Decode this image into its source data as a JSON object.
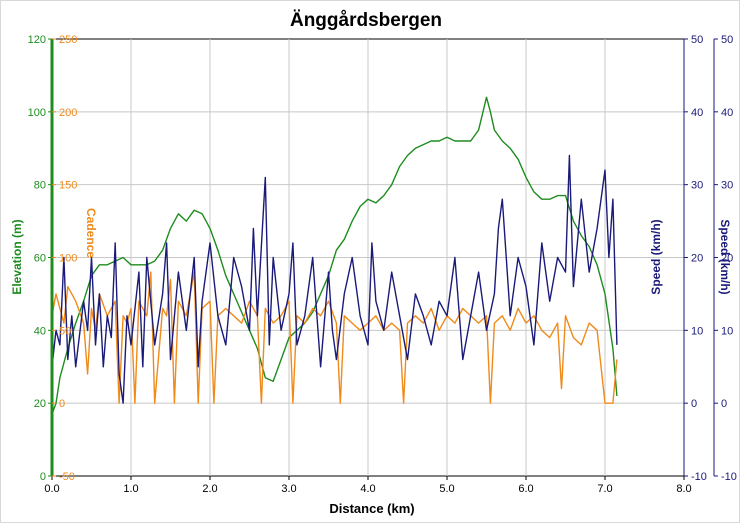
{
  "chart_data": {
    "type": "line",
    "title": "Änggårdsbergen",
    "xlabel": "Distance (km)",
    "xlim": [
      0,
      8
    ],
    "x_ticks": [
      "0.0",
      "1.0",
      "2.0",
      "3.0",
      "4.0",
      "5.0",
      "6.0",
      "7.0",
      "8.0"
    ],
    "axes": [
      {
        "name": "Elevation (m)",
        "side": "left",
        "color": "#1e8c1e",
        "ylim": [
          0,
          120
        ],
        "ticks": [
          "0",
          "20",
          "40",
          "60",
          "80",
          "100",
          "120"
        ]
      },
      {
        "name": "Cadence",
        "side": "left",
        "color": "#f08a1a",
        "ylim": [
          -50,
          250
        ],
        "ticks": [
          "-50",
          "0",
          "50",
          "100",
          "150",
          "200",
          "250"
        ]
      },
      {
        "name": "Speed (km/h)",
        "side": "right",
        "color": "#1a1a7a",
        "ylim": [
          -10,
          50
        ],
        "ticks": [
          "-10",
          "0",
          "10",
          "20",
          "30",
          "40",
          "50"
        ]
      },
      {
        "name": "Speed (km/h)",
        "side": "right",
        "color": "#1a1a7a",
        "ylim": [
          -10,
          50
        ],
        "ticks": [
          "-10",
          "0",
          "10",
          "20",
          "30",
          "40",
          "50"
        ]
      }
    ],
    "series": [
      {
        "name": "Elevation",
        "axis": 0,
        "color": "#1e8c1e",
        "x": [
          0.0,
          0.05,
          0.1,
          0.2,
          0.3,
          0.4,
          0.5,
          0.6,
          0.7,
          0.8,
          0.9,
          1.0,
          1.1,
          1.2,
          1.3,
          1.4,
          1.5,
          1.6,
          1.7,
          1.8,
          1.9,
          2.0,
          2.1,
          2.2,
          2.3,
          2.4,
          2.5,
          2.6,
          2.7,
          2.8,
          2.9,
          3.0,
          3.1,
          3.2,
          3.3,
          3.4,
          3.5,
          3.6,
          3.7,
          3.8,
          3.9,
          4.0,
          4.1,
          4.2,
          4.3,
          4.4,
          4.5,
          4.6,
          4.7,
          4.8,
          4.9,
          5.0,
          5.1,
          5.2,
          5.3,
          5.4,
          5.5,
          5.55,
          5.6,
          5.7,
          5.8,
          5.9,
          6.0,
          6.1,
          6.2,
          6.3,
          6.4,
          6.5,
          6.6,
          6.7,
          6.8,
          6.9,
          7.0,
          7.1,
          7.15
        ],
        "y": [
          17,
          20,
          27,
          35,
          42,
          48,
          55,
          58,
          58,
          59,
          60,
          58,
          58,
          58,
          59,
          62,
          68,
          72,
          70,
          73,
          72,
          68,
          62,
          55,
          50,
          45,
          40,
          35,
          27,
          26,
          32,
          38,
          40,
          42,
          45,
          50,
          55,
          62,
          65,
          70,
          74,
          76,
          75,
          77,
          80,
          85,
          88,
          90,
          91,
          92,
          92,
          93,
          92,
          92,
          92,
          95,
          104,
          100,
          95,
          92,
          90,
          87,
          82,
          78,
          76,
          76,
          77,
          77,
          70,
          66,
          63,
          58,
          50,
          35,
          22
        ]
      },
      {
        "name": "Cadence",
        "axis": 1,
        "color": "#f08a1a",
        "x": [
          0.0,
          0.05,
          0.1,
          0.15,
          0.2,
          0.3,
          0.4,
          0.45,
          0.5,
          0.55,
          0.6,
          0.7,
          0.8,
          0.85,
          0.9,
          0.95,
          1.0,
          1.05,
          1.1,
          1.2,
          1.25,
          1.3,
          1.4,
          1.45,
          1.5,
          1.55,
          1.6,
          1.7,
          1.8,
          1.85,
          1.9,
          2.0,
          2.05,
          2.1,
          2.2,
          2.3,
          2.4,
          2.5,
          2.6,
          2.65,
          2.7,
          2.8,
          2.9,
          3.0,
          3.05,
          3.1,
          3.2,
          3.3,
          3.4,
          3.5,
          3.6,
          3.65,
          3.7,
          3.8,
          3.9,
          4.0,
          4.1,
          4.2,
          4.3,
          4.4,
          4.45,
          4.5,
          4.6,
          4.7,
          4.8,
          4.9,
          5.0,
          5.1,
          5.2,
          5.3,
          5.4,
          5.5,
          5.55,
          5.6,
          5.7,
          5.8,
          5.9,
          6.0,
          6.1,
          6.2,
          6.3,
          6.4,
          6.45,
          6.5,
          6.6,
          6.7,
          6.8,
          6.9,
          7.0,
          7.1,
          7.15
        ],
        "y": [
          60,
          75,
          65,
          55,
          80,
          70,
          55,
          20,
          65,
          50,
          75,
          60,
          70,
          0,
          60,
          55,
          65,
          0,
          70,
          60,
          90,
          0,
          65,
          60,
          85,
          0,
          70,
          60,
          90,
          0,
          65,
          70,
          0,
          60,
          65,
          60,
          55,
          70,
          60,
          0,
          65,
          55,
          60,
          70,
          0,
          60,
          55,
          65,
          60,
          70,
          55,
          0,
          60,
          55,
          50,
          55,
          60,
          50,
          55,
          50,
          0,
          55,
          60,
          55,
          65,
          50,
          60,
          55,
          65,
          60,
          55,
          60,
          0,
          55,
          60,
          50,
          65,
          55,
          60,
          50,
          45,
          55,
          10,
          60,
          45,
          40,
          55,
          50,
          0,
          0,
          30
        ]
      },
      {
        "name": "Speed",
        "axis": 2,
        "color": "#1a1a7a",
        "x": [
          0.0,
          0.05,
          0.1,
          0.15,
          0.2,
          0.25,
          0.3,
          0.4,
          0.45,
          0.5,
          0.55,
          0.6,
          0.65,
          0.7,
          0.75,
          0.8,
          0.85,
          0.9,
          0.95,
          1.0,
          1.1,
          1.15,
          1.2,
          1.3,
          1.4,
          1.45,
          1.5,
          1.6,
          1.7,
          1.8,
          1.85,
          1.9,
          2.0,
          2.1,
          2.2,
          2.3,
          2.4,
          2.5,
          2.55,
          2.6,
          2.7,
          2.75,
          2.8,
          2.9,
          3.0,
          3.05,
          3.1,
          3.2,
          3.3,
          3.4,
          3.5,
          3.55,
          3.6,
          3.7,
          3.8,
          3.9,
          4.0,
          4.05,
          4.1,
          4.2,
          4.3,
          4.4,
          4.5,
          4.6,
          4.7,
          4.8,
          4.9,
          5.0,
          5.1,
          5.2,
          5.3,
          5.4,
          5.5,
          5.6,
          5.65,
          5.7,
          5.8,
          5.9,
          6.0,
          6.1,
          6.2,
          6.3,
          6.4,
          6.5,
          6.55,
          6.6,
          6.7,
          6.8,
          6.9,
          7.0,
          7.05,
          7.1,
          7.15
        ],
        "y": [
          5,
          10,
          8,
          20,
          6,
          12,
          5,
          14,
          10,
          20,
          8,
          15,
          5,
          12,
          9,
          22,
          4,
          0,
          12,
          8,
          18,
          5,
          20,
          8,
          15,
          22,
          6,
          18,
          10,
          20,
          5,
          14,
          22,
          12,
          8,
          20,
          16,
          10,
          24,
          12,
          31,
          8,
          20,
          10,
          15,
          22,
          8,
          12,
          20,
          5,
          18,
          10,
          6,
          15,
          20,
          12,
          8,
          22,
          14,
          10,
          18,
          12,
          6,
          15,
          12,
          8,
          14,
          12,
          20,
          6,
          12,
          18,
          10,
          15,
          24,
          28,
          12,
          20,
          16,
          8,
          22,
          14,
          20,
          18,
          34,
          16,
          28,
          18,
          24,
          32,
          20,
          28,
          8
        ]
      }
    ]
  }
}
